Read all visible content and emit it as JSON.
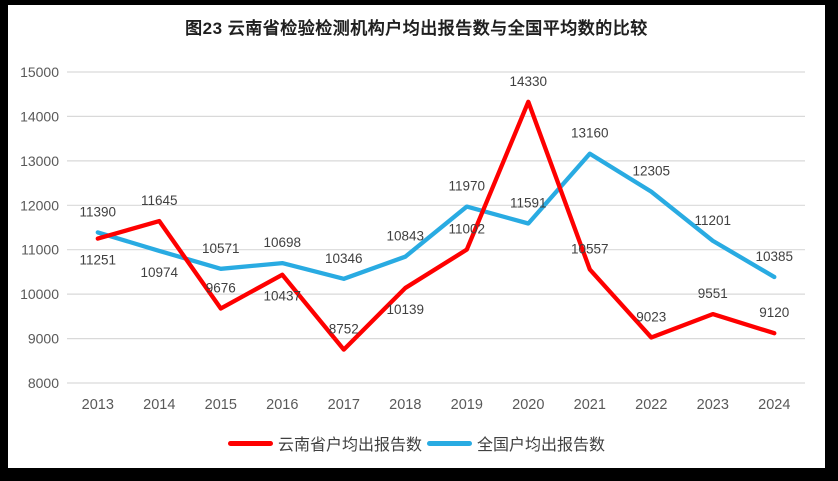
{
  "chart_data": {
    "type": "line",
    "title": "图23 云南省检验检测机构户均出报告数与全国平均数的比较",
    "categories": [
      "2013",
      "2014",
      "2015",
      "2016",
      "2017",
      "2018",
      "2019",
      "2020",
      "2021",
      "2022",
      "2023",
      "2024"
    ],
    "series": [
      {
        "name": "云南省户均出报告数",
        "color": "#FE0000",
        "values": [
          11251,
          11645,
          9676,
          10437,
          8752,
          10139,
          11002,
          14330,
          10557,
          9023,
          9551,
          9120
        ],
        "label_pos": [
          "below",
          "above",
          "above",
          "below",
          "above",
          "below",
          "above",
          "above",
          "above",
          "above",
          "above",
          "above"
        ]
      },
      {
        "name": "全国户均出报告数",
        "color": "#29ABE2",
        "values": [
          11390,
          10974,
          10571,
          10698,
          10346,
          10843,
          11970,
          11591,
          13160,
          12305,
          11201,
          10385
        ],
        "label_pos": [
          "above",
          "below",
          "above",
          "above",
          "above",
          "above",
          "above",
          "above",
          "above",
          "above",
          "above",
          "above"
        ]
      }
    ],
    "ylim": [
      8000,
      15000
    ],
    "ytick_step": 1000,
    "ytick_labels": [
      "8000",
      "9000",
      "10000",
      "11000",
      "12000",
      "13000",
      "14000",
      "15000"
    ],
    "xlabel": "",
    "ylabel": "",
    "grid": true,
    "legend_position": "bottom"
  },
  "legend": {
    "items": [
      {
        "label": "云南省户均出报告数",
        "color": "#FE0000",
        "swatch": "red-line-swatch"
      },
      {
        "label": "全国户均出报告数",
        "color": "#29ABE2",
        "swatch": "blue-line-swatch"
      }
    ]
  },
  "colors": {
    "frame": "#000000",
    "background": "#FFFFFF",
    "grid": "#D9D9D9",
    "axis_text": "#595959",
    "data_label_text": "#404040",
    "title_text": "#1F1F1F"
  }
}
